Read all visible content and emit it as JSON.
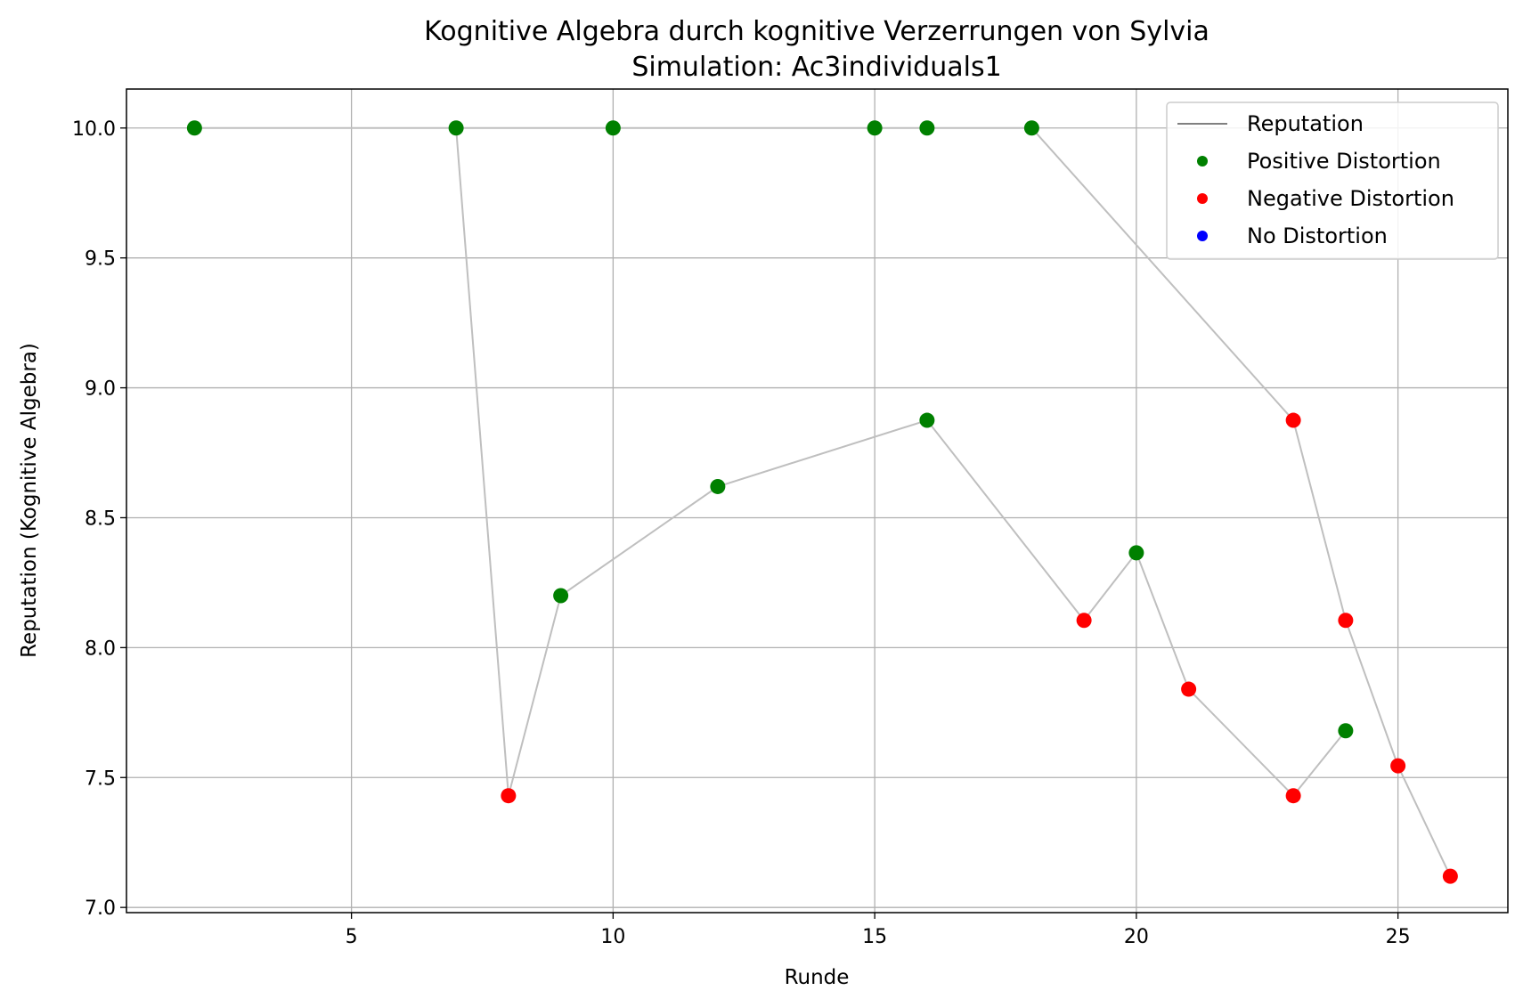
{
  "chart_data": {
    "type": "scatter",
    "title": "Kognitive Algebra durch kognitive Verzerrungen von Sylvia",
    "subtitle": "Simulation: Ac3individuals1",
    "xlabel": "Runde",
    "ylabel": "Reputation (Kognitive Algebra)",
    "xlim": [
      0.7,
      27.1
    ],
    "ylim": [
      6.98,
      10.15
    ],
    "xticks": [
      5,
      10,
      15,
      20,
      25
    ],
    "yticks": [
      7.0,
      7.5,
      8.0,
      8.5,
      9.0,
      9.5,
      10.0
    ],
    "xtick_labels": [
      "5",
      "10",
      "15",
      "20",
      "25"
    ],
    "ytick_labels": [
      "7.0",
      "7.5",
      "8.0",
      "8.5",
      "9.0",
      "9.5",
      "10.0"
    ],
    "grid": true,
    "legend_position": "top-right",
    "colors": {
      "line": "#bfbfbf",
      "legend_line": "#808080",
      "positive": "#008000",
      "negative": "#ff0000",
      "none": "#0000ff"
    },
    "legend": [
      {
        "key": "line",
        "label": "Reputation"
      },
      {
        "key": "positive",
        "label": "Positive Distortion"
      },
      {
        "key": "negative",
        "label": "Negative Distortion"
      },
      {
        "key": "none",
        "label": "No Distortion"
      }
    ],
    "lines": [
      {
        "name": "Reputation",
        "points": [
          [
            2,
            10.0
          ],
          [
            7,
            10.0
          ],
          [
            10,
            10.0
          ],
          [
            15,
            10.0
          ],
          [
            16,
            10.0
          ],
          [
            18,
            10.0
          ]
        ]
      },
      {
        "name": "Reputation",
        "points": [
          [
            7,
            10.0
          ],
          [
            8,
            7.43
          ],
          [
            9,
            8.2
          ],
          [
            12,
            8.62
          ],
          [
            16,
            8.875
          ],
          [
            19,
            8.105
          ],
          [
            20,
            8.365
          ],
          [
            21,
            7.84
          ],
          [
            23,
            7.43
          ],
          [
            24,
            7.68
          ]
        ]
      },
      {
        "name": "Reputation",
        "points": [
          [
            18,
            10.0
          ],
          [
            23,
            8.875
          ],
          [
            24,
            8.105
          ],
          [
            25,
            7.545
          ],
          [
            26,
            7.12
          ]
        ]
      }
    ],
    "points": [
      {
        "x": 2,
        "y": 10.0,
        "kind": "positive"
      },
      {
        "x": 7,
        "y": 10.0,
        "kind": "positive"
      },
      {
        "x": 10,
        "y": 10.0,
        "kind": "positive"
      },
      {
        "x": 15,
        "y": 10.0,
        "kind": "positive"
      },
      {
        "x": 16,
        "y": 10.0,
        "kind": "positive"
      },
      {
        "x": 18,
        "y": 10.0,
        "kind": "positive"
      },
      {
        "x": 8,
        "y": 7.43,
        "kind": "negative"
      },
      {
        "x": 9,
        "y": 8.2,
        "kind": "positive"
      },
      {
        "x": 12,
        "y": 8.62,
        "kind": "positive"
      },
      {
        "x": 16,
        "y": 8.875,
        "kind": "positive"
      },
      {
        "x": 19,
        "y": 8.105,
        "kind": "negative"
      },
      {
        "x": 20,
        "y": 8.365,
        "kind": "positive"
      },
      {
        "x": 21,
        "y": 7.84,
        "kind": "negative"
      },
      {
        "x": 23,
        "y": 7.43,
        "kind": "negative"
      },
      {
        "x": 24,
        "y": 7.68,
        "kind": "positive"
      },
      {
        "x": 23,
        "y": 8.875,
        "kind": "negative"
      },
      {
        "x": 24,
        "y": 8.105,
        "kind": "negative"
      },
      {
        "x": 25,
        "y": 7.545,
        "kind": "negative"
      },
      {
        "x": 26,
        "y": 7.12,
        "kind": "negative"
      }
    ]
  }
}
